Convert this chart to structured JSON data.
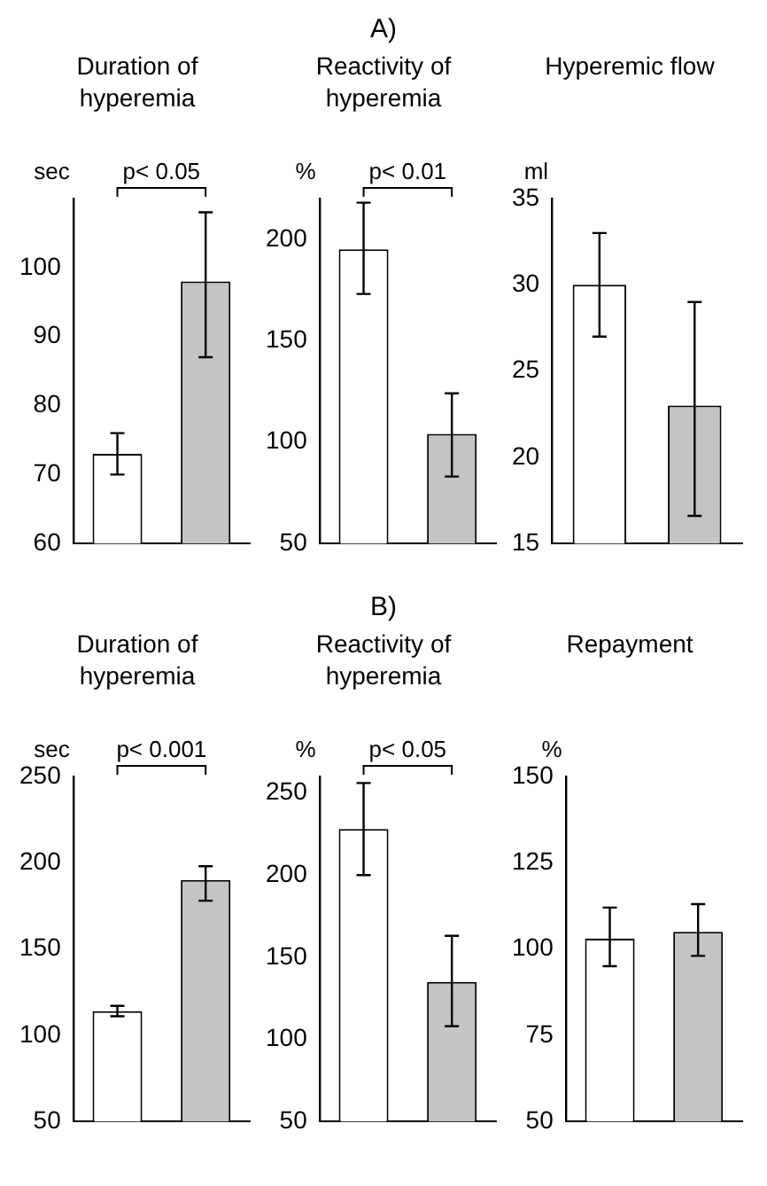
{
  "chart_data": [
    {
      "type": "bar",
      "subtitle": "Duration of hyperemia",
      "ylabel": "sec",
      "categories": [
        null,
        null
      ],
      "values": [
        73,
        98
      ],
      "errors": [
        [
          70,
          76
        ],
        [
          87,
          108
        ]
      ],
      "colors": [
        "#ffffff",
        "#c4c4c4"
      ],
      "ylim": [
        60,
        110
      ],
      "yticks": [
        60,
        70,
        80,
        90,
        100
      ],
      "grid": false,
      "legend": false,
      "tick_labels": "y",
      "annotations": [
        "p< 0.05"
      ]
    },
    {
      "type": "bar",
      "title": "A)",
      "subtitle": "Reactivity of hyperemia",
      "ylabel": "%",
      "categories": [
        null,
        null
      ],
      "values": [
        195,
        104
      ],
      "errors": [
        [
          173,
          218
        ],
        [
          83,
          124
        ]
      ],
      "colors": [
        "#ffffff",
        "#c4c4c4"
      ],
      "ylim": [
        50,
        220
      ],
      "yticks": [
        50,
        100,
        150,
        200
      ],
      "grid": false,
      "legend": false,
      "tick_labels": "y",
      "annotations": [
        "p< 0.01"
      ]
    },
    {
      "type": "bar",
      "subtitle": "Hyperemic flow",
      "ylabel": "ml",
      "categories": [
        null,
        null
      ],
      "values": [
        30,
        23
      ],
      "errors": [
        [
          27,
          33
        ],
        [
          16.6,
          29
        ]
      ],
      "colors": [
        "#ffffff",
        "#c4c4c4"
      ],
      "ylim": [
        15,
        35
      ],
      "yticks": [
        15,
        20,
        25,
        30,
        35
      ],
      "grid": false,
      "legend": false,
      "tick_labels": "y"
    },
    {
      "type": "bar",
      "subtitle": "Duration of hyperemia",
      "ylabel": "sec",
      "categories": [
        null,
        null
      ],
      "values": [
        114,
        190
      ],
      "errors": [
        [
          111,
          117
        ],
        [
          178,
          198
        ]
      ],
      "colors": [
        "#ffffff",
        "#c4c4c4"
      ],
      "ylim": [
        50,
        250
      ],
      "yticks": [
        50,
        100,
        150,
        200,
        250
      ],
      "grid": false,
      "legend": false,
      "tick_labels": "y",
      "annotations": [
        "p< 0.001"
      ]
    },
    {
      "type": "bar",
      "title": "B)",
      "subtitle": "Reactivity of hyperemia",
      "ylabel": "%",
      "categories": [
        null,
        null
      ],
      "values": [
        228,
        135
      ],
      "errors": [
        [
          200,
          256
        ],
        [
          108,
          163
        ]
      ],
      "colors": [
        "#ffffff",
        "#c4c4c4"
      ],
      "ylim": [
        50,
        260
      ],
      "yticks": [
        50,
        100,
        150,
        200,
        250
      ],
      "grid": false,
      "legend": false,
      "tick_labels": "y",
      "annotations": [
        "p< 0.05"
      ]
    },
    {
      "type": "bar",
      "subtitle": "Repayment",
      "ylabel": "%",
      "categories": [
        null,
        null
      ],
      "values": [
        103,
        105
      ],
      "errors": [
        [
          95,
          112
        ],
        [
          98,
          113
        ]
      ],
      "colors": [
        "#ffffff",
        "#c4c4c4"
      ],
      "ylim": [
        50,
        150
      ],
      "yticks": [
        50,
        75,
        100,
        125,
        150
      ],
      "grid": false,
      "legend": false,
      "tick_labels": "y"
    }
  ]
}
